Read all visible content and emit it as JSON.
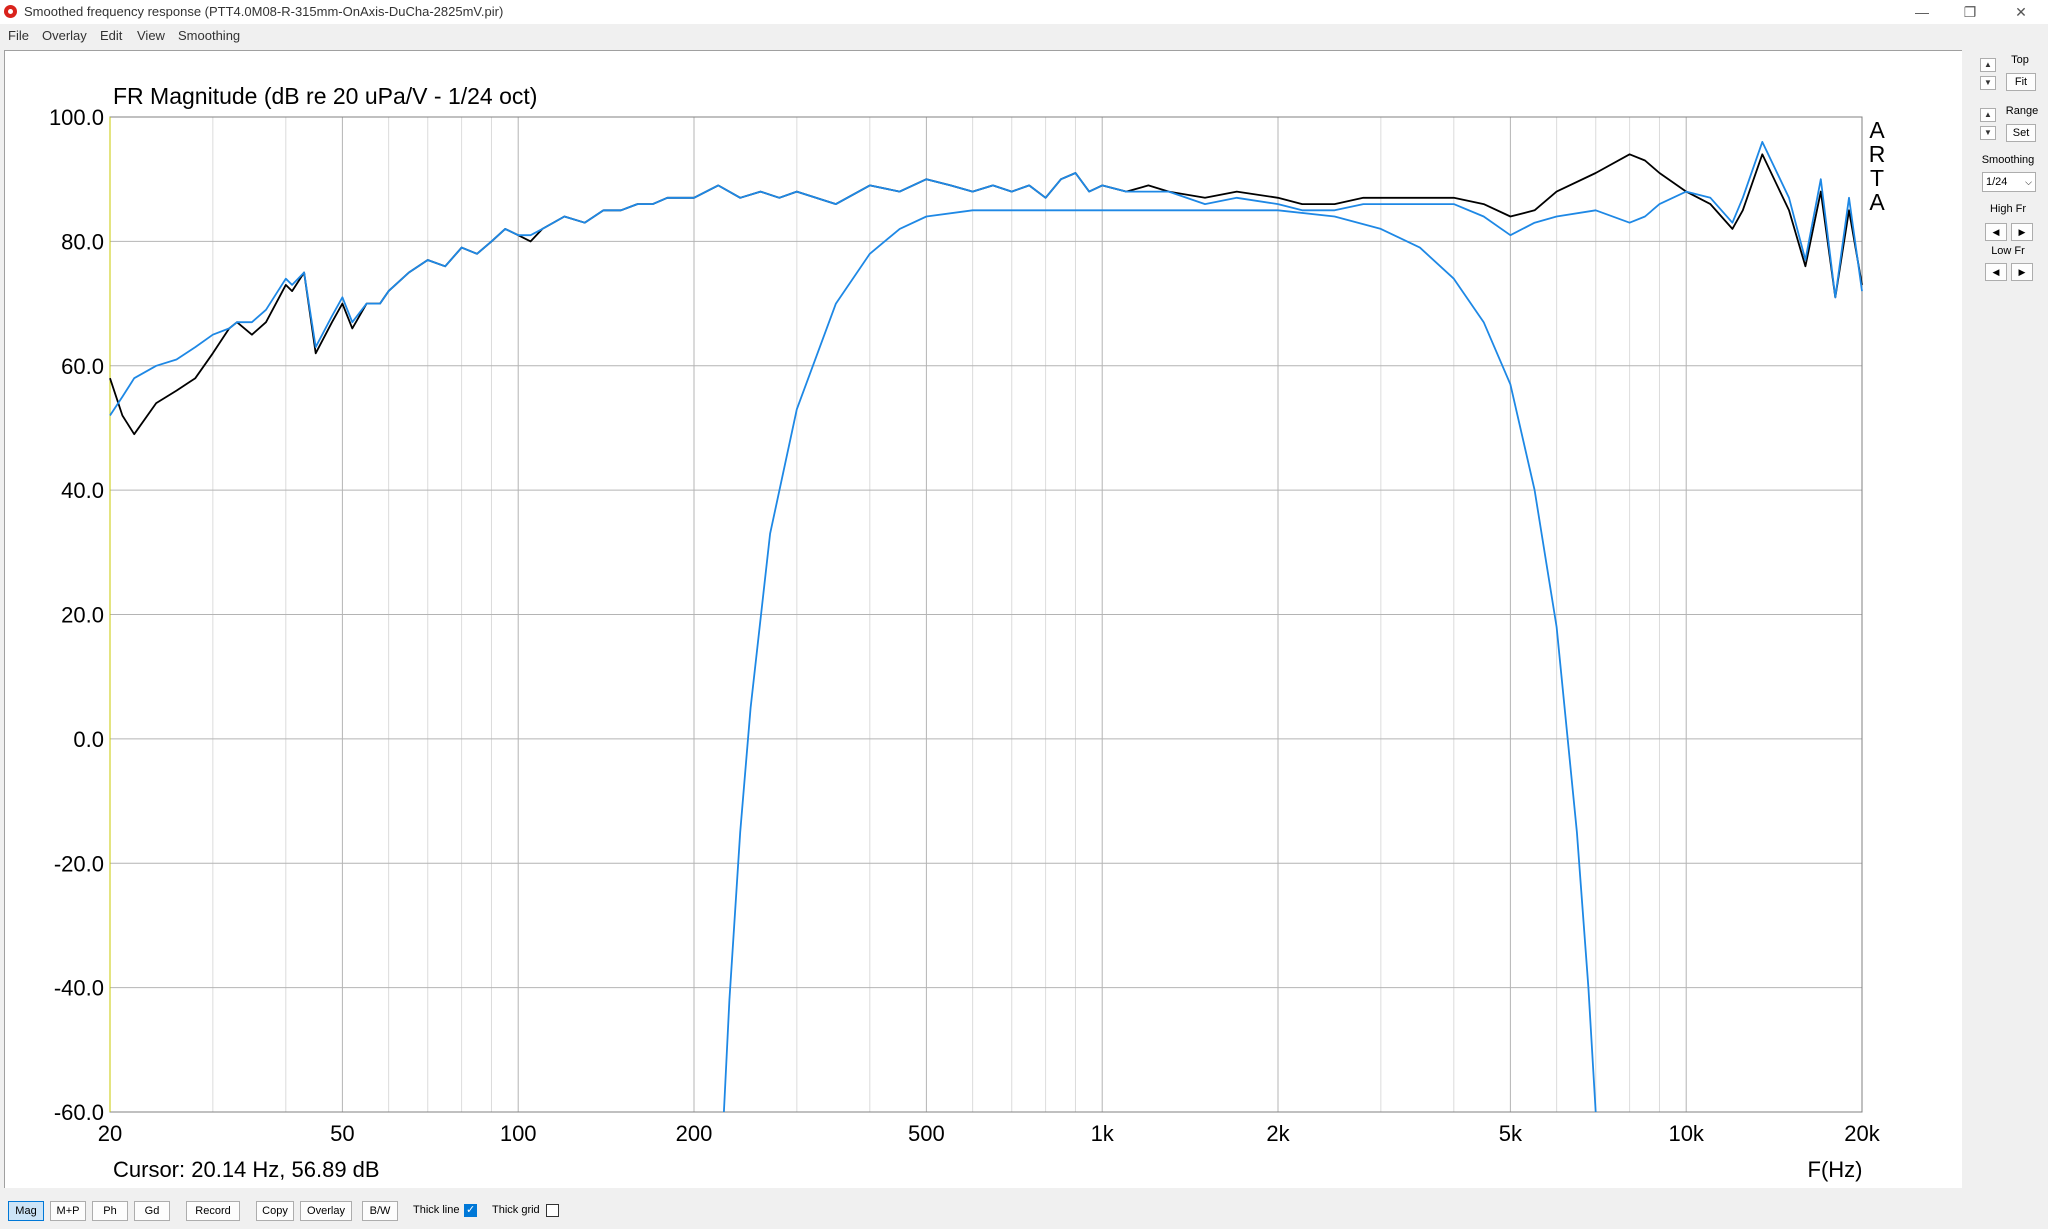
{
  "window": {
    "title": "Smoothed frequency response (PTT4.0M08-R-315mm-OnAxis-DuCha-2825mV.pir)",
    "minimize_glyph": "—",
    "restore_glyph": "❐",
    "close_glyph": "✕"
  },
  "menu": [
    "File",
    "Overlay",
    "Edit",
    "View",
    "Smoothing"
  ],
  "chart_data": {
    "type": "line",
    "title": "FR Magnitude (dB re 20 uPa/V - 1/24 oct)",
    "xlabel": "F(Hz)",
    "ylabel": "",
    "x_scale": "log",
    "xlim": [
      20,
      20000
    ],
    "ylim": [
      -60,
      100
    ],
    "x_ticks": [
      20,
      50,
      100,
      200,
      500,
      1000,
      2000,
      5000,
      10000,
      20000
    ],
    "x_tick_labels": [
      "20",
      "50",
      "100",
      "200",
      "500",
      "1k",
      "2k",
      "5k",
      "10k",
      "20k"
    ],
    "y_ticks": [
      100,
      80,
      60,
      40,
      20,
      0,
      -20,
      -40,
      -60
    ],
    "y_tick_labels": [
      "100.0",
      "80.0",
      "60.0",
      "40.0",
      "20.0",
      "0.0",
      "-20.0",
      "-40.0",
      "-60.0"
    ],
    "grid": true,
    "watermark": "ARTA",
    "cursor_readout": "Cursor: 20.14 Hz, 56.89 dB",
    "series": [
      {
        "color": "#000000",
        "x": [
          20,
          21,
          22,
          24,
          26,
          28,
          30,
          32,
          33,
          35,
          37,
          40,
          41,
          43,
          45,
          48,
          50,
          52,
          55,
          58,
          60,
          65,
          70,
          75,
          80,
          85,
          90,
          95,
          100,
          105,
          110,
          120,
          130,
          140,
          150,
          160,
          170,
          180,
          200,
          220,
          240,
          260,
          280,
          300,
          350,
          400,
          450,
          500,
          550,
          600,
          650,
          700,
          750,
          800,
          850,
          900,
          950,
          1000,
          1100,
          1200,
          1300,
          1500,
          1700,
          2000,
          2200,
          2500,
          2800,
          3000,
          3500,
          4000,
          4500,
          5000,
          5500,
          6000,
          7000,
          8000,
          8500,
          9000,
          10000,
          11000,
          12000,
          12500,
          13500,
          15000,
          16000,
          17000,
          18000,
          19000,
          20000
        ],
        "y": [
          58,
          52,
          49,
          54,
          56,
          58,
          62,
          66,
          67,
          65,
          67,
          73,
          72,
          75,
          62,
          67,
          70,
          66,
          70,
          70,
          72,
          75,
          77,
          76,
          79,
          78,
          80,
          82,
          81,
          80,
          82,
          84,
          83,
          85,
          85,
          86,
          86,
          87,
          87,
          89,
          87,
          88,
          87,
          88,
          86,
          89,
          88,
          90,
          89,
          88,
          89,
          88,
          89,
          87,
          90,
          91,
          88,
          89,
          88,
          89,
          88,
          87,
          88,
          87,
          86,
          86,
          87,
          87,
          87,
          87,
          86,
          84,
          85,
          88,
          91,
          94,
          93,
          91,
          88,
          86,
          82,
          85,
          94,
          85,
          76,
          88,
          71,
          85,
          73
        ]
      },
      {
        "color": "#1e88e5",
        "x": [
          20,
          21,
          22,
          24,
          26,
          28,
          30,
          32,
          33,
          35,
          37,
          40,
          41,
          43,
          45,
          48,
          50,
          52,
          55,
          58,
          60,
          65,
          70,
          75,
          80,
          85,
          90,
          95,
          100,
          105,
          110,
          120,
          130,
          140,
          150,
          160,
          170,
          180,
          200,
          220,
          240,
          260,
          280,
          300,
          350,
          400,
          450,
          500,
          550,
          600,
          650,
          700,
          750,
          800,
          850,
          900,
          950,
          1000,
          1100,
          1200,
          1300,
          1500,
          1700,
          2000,
          2200,
          2500,
          2800,
          3000,
          3500,
          4000,
          4500,
          5000,
          5500,
          6000,
          7000,
          8000,
          8500,
          9000,
          10000,
          11000,
          12000,
          12500,
          13500,
          15000,
          16000,
          17000,
          18000,
          19000,
          20000
        ],
        "y": [
          52,
          55,
          58,
          60,
          61,
          63,
          65,
          66,
          67,
          67,
          69,
          74,
          73,
          75,
          63,
          68,
          71,
          67,
          70,
          70,
          72,
          75,
          77,
          76,
          79,
          78,
          80,
          82,
          81,
          81,
          82,
          84,
          83,
          85,
          85,
          86,
          86,
          87,
          87,
          89,
          87,
          88,
          87,
          88,
          86,
          89,
          88,
          90,
          89,
          88,
          89,
          88,
          89,
          87,
          90,
          91,
          88,
          89,
          88,
          88,
          88,
          86,
          87,
          86,
          85,
          85,
          86,
          86,
          86,
          86,
          84,
          81,
          83,
          84,
          85,
          83,
          84,
          86,
          88,
          87,
          83,
          87,
          96,
          87,
          77,
          90,
          71,
          87,
          72
        ]
      },
      {
        "color": "#1e88e5",
        "x": [
          225,
          230,
          240,
          250,
          270,
          300,
          350,
          400,
          450,
          500,
          600,
          700,
          800,
          1000,
          1500,
          2000,
          2500,
          3000,
          3500,
          4000,
          4500,
          5000,
          5500,
          6000,
          6500,
          6800,
          7000
        ],
        "y": [
          -60,
          -42,
          -15,
          5,
          33,
          53,
          70,
          78,
          82,
          84,
          85,
          85,
          85,
          85,
          85,
          85,
          84,
          82,
          79,
          74,
          67,
          57,
          40,
          18,
          -15,
          -40,
          -60
        ]
      }
    ]
  },
  "right_panel": {
    "top_label": "Top",
    "fit_label": "Fit",
    "range_label": "Range",
    "set_label": "Set",
    "smoothing_label": "Smoothing",
    "smoothing_value": "1/24",
    "high_label": "High Fr",
    "low_label": "Low Fr"
  },
  "bottom_bar": {
    "buttons": [
      "Mag",
      "M+P",
      "Ph",
      "Gd",
      "Record",
      "Copy",
      "Overlay",
      "B/W"
    ],
    "thick_line_label": "Thick line",
    "thick_line_checked": true,
    "thick_grid_label": "Thick grid",
    "thick_grid_checked": false
  }
}
